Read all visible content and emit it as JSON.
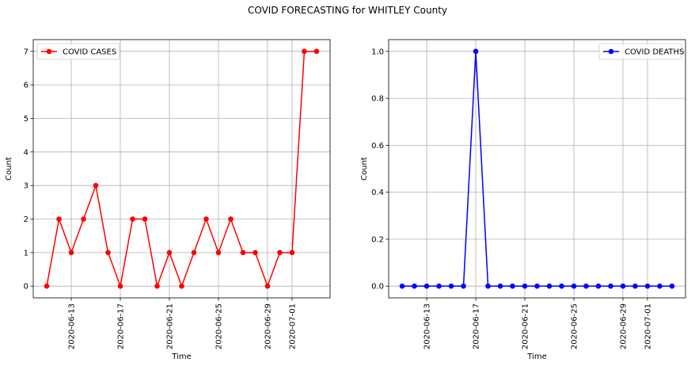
{
  "suptitle": "COVID FORECASTING for WHITLEY County",
  "colors": {
    "cases": "#ff0000",
    "deaths": "#0000ff",
    "grid": "#b0b0b0"
  },
  "chart_data": [
    {
      "type": "line",
      "series": [
        {
          "name": "COVID CASES",
          "x": [
            "2020-06-11",
            "2020-06-12",
            "2020-06-13",
            "2020-06-14",
            "2020-06-15",
            "2020-06-16",
            "2020-06-17",
            "2020-06-18",
            "2020-06-19",
            "2020-06-20",
            "2020-06-21",
            "2020-06-22",
            "2020-06-23",
            "2020-06-24",
            "2020-06-25",
            "2020-06-26",
            "2020-06-27",
            "2020-06-28",
            "2020-06-29",
            "2020-06-30",
            "2020-07-01",
            "2020-07-02",
            "2020-07-03"
          ],
          "values": [
            0,
            2,
            1,
            2,
            3,
            1,
            0,
            2,
            2,
            0,
            1,
            0,
            1,
            2,
            1,
            2,
            1,
            1,
            0,
            1,
            1,
            7,
            7
          ],
          "color": "#ff0000",
          "marker": "circle"
        }
      ],
      "xticks": [
        "2020-06-13",
        "2020-06-17",
        "2020-06-21",
        "2020-06-25",
        "2020-06-29",
        "2020-07-01"
      ],
      "yticks": [
        "0",
        "1",
        "2",
        "3",
        "4",
        "5",
        "6",
        "7"
      ],
      "xlabel": "Time",
      "ylabel": "Count",
      "grid": true,
      "legend": "upper-left"
    },
    {
      "type": "line",
      "series": [
        {
          "name": "COVID DEATHS",
          "x": [
            "2020-06-11",
            "2020-06-12",
            "2020-06-13",
            "2020-06-14",
            "2020-06-15",
            "2020-06-16",
            "2020-06-17",
            "2020-06-18",
            "2020-06-19",
            "2020-06-20",
            "2020-06-21",
            "2020-06-22",
            "2020-06-23",
            "2020-06-24",
            "2020-06-25",
            "2020-06-26",
            "2020-06-27",
            "2020-06-28",
            "2020-06-29",
            "2020-06-30",
            "2020-07-01",
            "2020-07-02",
            "2020-07-03"
          ],
          "values": [
            0,
            0,
            0,
            0,
            0,
            0,
            1,
            0,
            0,
            0,
            0,
            0,
            0,
            0,
            0,
            0,
            0,
            0,
            0,
            0,
            0,
            0,
            0
          ],
          "color": "#0000ff",
          "marker": "circle"
        }
      ],
      "xticks": [
        "2020-06-13",
        "2020-06-17",
        "2020-06-21",
        "2020-06-25",
        "2020-06-29",
        "2020-07-01"
      ],
      "yticks": [
        "0.0",
        "0.2",
        "0.4",
        "0.6",
        "0.8",
        "1.0"
      ],
      "xlabel": "Time",
      "ylabel": "Count",
      "grid": true,
      "legend": "upper-right"
    }
  ]
}
